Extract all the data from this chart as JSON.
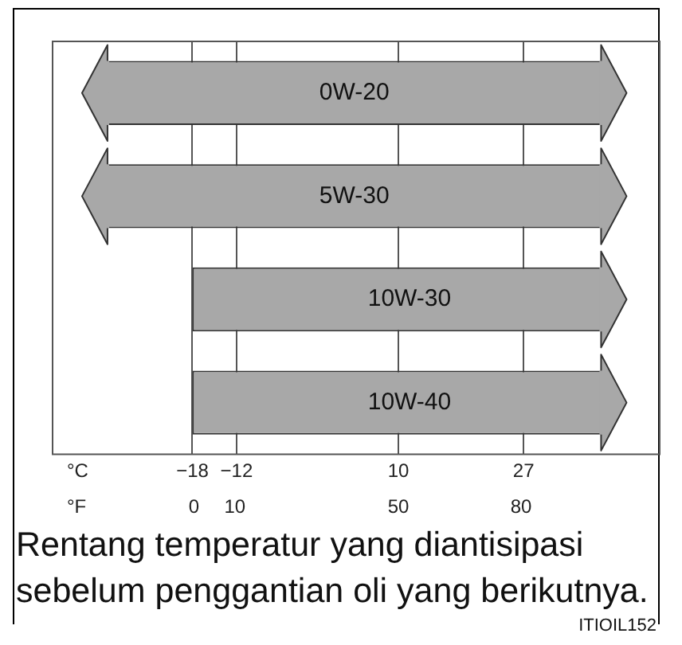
{
  "chart_data": {
    "type": "bar",
    "orientation": "horizontal",
    "categories": [
      "0W-20",
      "5W-30",
      "10W-30",
      "10W-40"
    ],
    "base": [
      -33,
      -33,
      -18,
      -18
    ],
    "values": [
      74,
      74,
      59,
      59
    ],
    "color": "#a8a8a8",
    "xlabel": "°C",
    "x2label": "°F",
    "xlim": [
      -37,
      45.5
    ],
    "xticks": [
      -18,
      -12,
      10,
      27
    ],
    "x2lim": [
      -34.6,
      113.9
    ],
    "x2ticks": [
      0,
      10,
      50,
      80
    ],
    "grid": "x",
    "legend": false,
    "tick_labels": "x",
    "annotations": [
      "Rentang temperatur yang diantisipasi sebelum penggantian oli yang berikutnya.",
      "ITIOIL152"
    ]
  }
}
